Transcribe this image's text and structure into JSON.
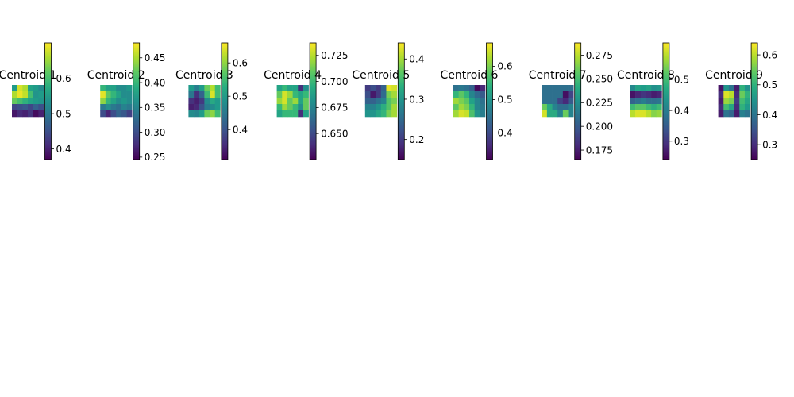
{
  "chart_data": {
    "type": "heatmap",
    "colormap": "viridis",
    "legend": "colorbar-right",
    "colors": {
      "low": "#440154",
      "mid": "#21918c",
      "high": "#fde725"
    },
    "panels": [
      {
        "title": "Centroid 1",
        "clim": [
          0.37,
          0.7
        ],
        "colorbar_ticks": [
          {
            "value": 0.4,
            "label": "0.4"
          },
          {
            "value": 0.5,
            "label": "0.5"
          },
          {
            "value": 0.6,
            "label": "0.6"
          }
        ],
        "matrix": [
          [
            0.55,
            0.68,
            0.66,
            0.56,
            0.55,
            0.53
          ],
          [
            0.66,
            0.69,
            0.67,
            0.6,
            0.54,
            0.55
          ],
          [
            0.62,
            0.6,
            0.58,
            0.56,
            0.55,
            0.54
          ],
          [
            0.44,
            0.45,
            0.46,
            0.44,
            0.47,
            0.45
          ],
          [
            0.39,
            0.41,
            0.4,
            0.42,
            0.38,
            0.4
          ]
        ]
      },
      {
        "title": "Centroid 2",
        "clim": [
          0.245,
          0.48
        ],
        "colorbar_ticks": [
          {
            "value": 0.25,
            "label": "0.25"
          },
          {
            "value": 0.3,
            "label": "0.30"
          },
          {
            "value": 0.35,
            "label": "0.35"
          },
          {
            "value": 0.4,
            "label": "0.40"
          },
          {
            "value": 0.45,
            "label": "0.45"
          }
        ],
        "matrix": [
          [
            0.4,
            0.38,
            0.38,
            0.36,
            0.36,
            0.37
          ],
          [
            0.47,
            0.42,
            0.4,
            0.38,
            0.36,
            0.36
          ],
          [
            0.44,
            0.4,
            0.38,
            0.36,
            0.37,
            0.36
          ],
          [
            0.34,
            0.36,
            0.34,
            0.33,
            0.35,
            0.34
          ],
          [
            0.3,
            0.27,
            0.3,
            0.32,
            0.31,
            0.29
          ]
        ]
      },
      {
        "title": "Centroid 3",
        "clim": [
          0.31,
          0.66
        ],
        "colorbar_ticks": [
          {
            "value": 0.4,
            "label": "0.4"
          },
          {
            "value": 0.5,
            "label": "0.5"
          },
          {
            "value": 0.6,
            "label": "0.6"
          }
        ],
        "matrix": [
          [
            0.5,
            0.46,
            0.5,
            0.58,
            0.62,
            0.55
          ],
          [
            0.45,
            0.36,
            0.42,
            0.55,
            0.64,
            0.55
          ],
          [
            0.36,
            0.34,
            0.37,
            0.48,
            0.52,
            0.5
          ],
          [
            0.34,
            0.35,
            0.4,
            0.46,
            0.48,
            0.5
          ],
          [
            0.48,
            0.47,
            0.5,
            0.58,
            0.6,
            0.55
          ]
        ]
      },
      {
        "title": "Centroid 4",
        "clim": [
          0.625,
          0.737
        ],
        "colorbar_ticks": [
          {
            "value": 0.65,
            "label": "0.650"
          },
          {
            "value": 0.675,
            "label": "0.675"
          },
          {
            "value": 0.7,
            "label": "0.700"
          },
          {
            "value": 0.725,
            "label": "0.725"
          }
        ],
        "matrix": [
          [
            0.69,
            0.7,
            0.69,
            0.69,
            0.64,
            0.68
          ],
          [
            0.71,
            0.73,
            0.72,
            0.7,
            0.69,
            0.7
          ],
          [
            0.72,
            0.73,
            0.71,
            0.72,
            0.69,
            0.71
          ],
          [
            0.7,
            0.72,
            0.71,
            0.7,
            0.68,
            0.71
          ],
          [
            0.69,
            0.7,
            0.7,
            0.7,
            0.64,
            0.69
          ]
        ]
      },
      {
        "title": "Centroid 5",
        "clim": [
          0.15,
          0.44
        ],
        "colorbar_ticks": [
          {
            "value": 0.2,
            "label": "0.2"
          },
          {
            "value": 0.3,
            "label": "0.3"
          },
          {
            "value": 0.4,
            "label": "0.4"
          }
        ],
        "matrix": [
          [
            0.2,
            0.22,
            0.2,
            0.24,
            0.43,
            0.42
          ],
          [
            0.22,
            0.17,
            0.2,
            0.25,
            0.38,
            0.4
          ],
          [
            0.24,
            0.24,
            0.26,
            0.28,
            0.36,
            0.38
          ],
          [
            0.28,
            0.28,
            0.3,
            0.33,
            0.36,
            0.4
          ],
          [
            0.3,
            0.3,
            0.32,
            0.34,
            0.38,
            0.4
          ]
        ]
      },
      {
        "title": "Centroid 6",
        "clim": [
          0.32,
          0.67
        ],
        "colorbar_ticks": [
          {
            "value": 0.4,
            "label": "0.4"
          },
          {
            "value": 0.5,
            "label": "0.5"
          },
          {
            "value": 0.6,
            "label": "0.6"
          }
        ],
        "matrix": [
          [
            0.45,
            0.46,
            0.45,
            0.43,
            0.33,
            0.36
          ],
          [
            0.55,
            0.58,
            0.55,
            0.48,
            0.44,
            0.42
          ],
          [
            0.62,
            0.6,
            0.58,
            0.52,
            0.48,
            0.45
          ],
          [
            0.58,
            0.62,
            0.6,
            0.55,
            0.48,
            0.46
          ],
          [
            0.62,
            0.65,
            0.64,
            0.57,
            0.5,
            0.47
          ]
        ]
      },
      {
        "title": "Centroid 7",
        "clim": [
          0.165,
          0.288
        ],
        "colorbar_ticks": [
          {
            "value": 0.175,
            "label": "0.175"
          },
          {
            "value": 0.2,
            "label": "0.200"
          },
          {
            "value": 0.225,
            "label": "0.225"
          },
          {
            "value": 0.25,
            "label": "0.250"
          },
          {
            "value": 0.275,
            "label": "0.275"
          }
        ],
        "matrix": [
          [
            0.21,
            0.21,
            0.21,
            0.21,
            0.21,
            0.21
          ],
          [
            0.21,
            0.21,
            0.21,
            0.21,
            0.17,
            0.19
          ],
          [
            0.21,
            0.21,
            0.21,
            0.19,
            0.18,
            0.2
          ],
          [
            0.26,
            0.24,
            0.22,
            0.21,
            0.21,
            0.22
          ],
          [
            0.28,
            0.24,
            0.24,
            0.22,
            0.26,
            0.22
          ]
        ]
      },
      {
        "title": "Centroid 8",
        "clim": [
          0.24,
          0.62
        ],
        "colorbar_ticks": [
          {
            "value": 0.3,
            "label": "0.3"
          },
          {
            "value": 0.4,
            "label": "0.4"
          },
          {
            "value": 0.5,
            "label": "0.5"
          }
        ],
        "matrix": [
          [
            0.42,
            0.46,
            0.45,
            0.46,
            0.43,
            0.44
          ],
          [
            0.26,
            0.28,
            0.3,
            0.29,
            0.27,
            0.28
          ],
          [
            0.36,
            0.38,
            0.4,
            0.38,
            0.38,
            0.39
          ],
          [
            0.5,
            0.52,
            0.52,
            0.5,
            0.48,
            0.5
          ],
          [
            0.58,
            0.6,
            0.6,
            0.58,
            0.55,
            0.56
          ]
        ]
      },
      {
        "title": "Centroid 9",
        "clim": [
          0.25,
          0.64
        ],
        "colorbar_ticks": [
          {
            "value": 0.3,
            "label": "0.3"
          },
          {
            "value": 0.4,
            "label": "0.4"
          },
          {
            "value": 0.5,
            "label": "0.5"
          },
          {
            "value": 0.6,
            "label": "0.6"
          }
        ],
        "matrix": [
          [
            0.27,
            0.45,
            0.4,
            0.28,
            0.5,
            0.45
          ],
          [
            0.3,
            0.62,
            0.6,
            0.3,
            0.55,
            0.5
          ],
          [
            0.28,
            0.58,
            0.56,
            0.32,
            0.52,
            0.48
          ],
          [
            0.3,
            0.52,
            0.48,
            0.3,
            0.5,
            0.46
          ],
          [
            0.28,
            0.4,
            0.38,
            0.28,
            0.42,
            0.4
          ]
        ]
      }
    ]
  }
}
